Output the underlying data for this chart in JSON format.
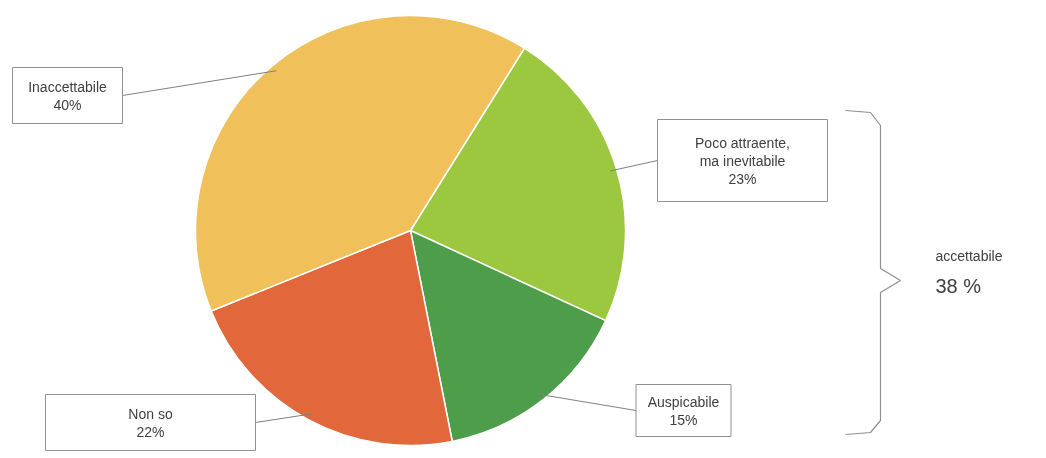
{
  "chart_data": {
    "type": "pie",
    "categories": [
      "Poco attraente, ma inevitabile",
      "Auspicabile",
      "Non so",
      "Inaccettabile"
    ],
    "values": [
      23,
      15,
      22,
      40
    ],
    "colors": [
      "#9bc83f",
      "#4e9d4a",
      "#e2683c",
      "#f0c05a"
    ],
    "value_labels": [
      "23%",
      "15%",
      "22%",
      "40%"
    ],
    "annotations": [
      "accettabile",
      "38 %"
    ]
  }
}
